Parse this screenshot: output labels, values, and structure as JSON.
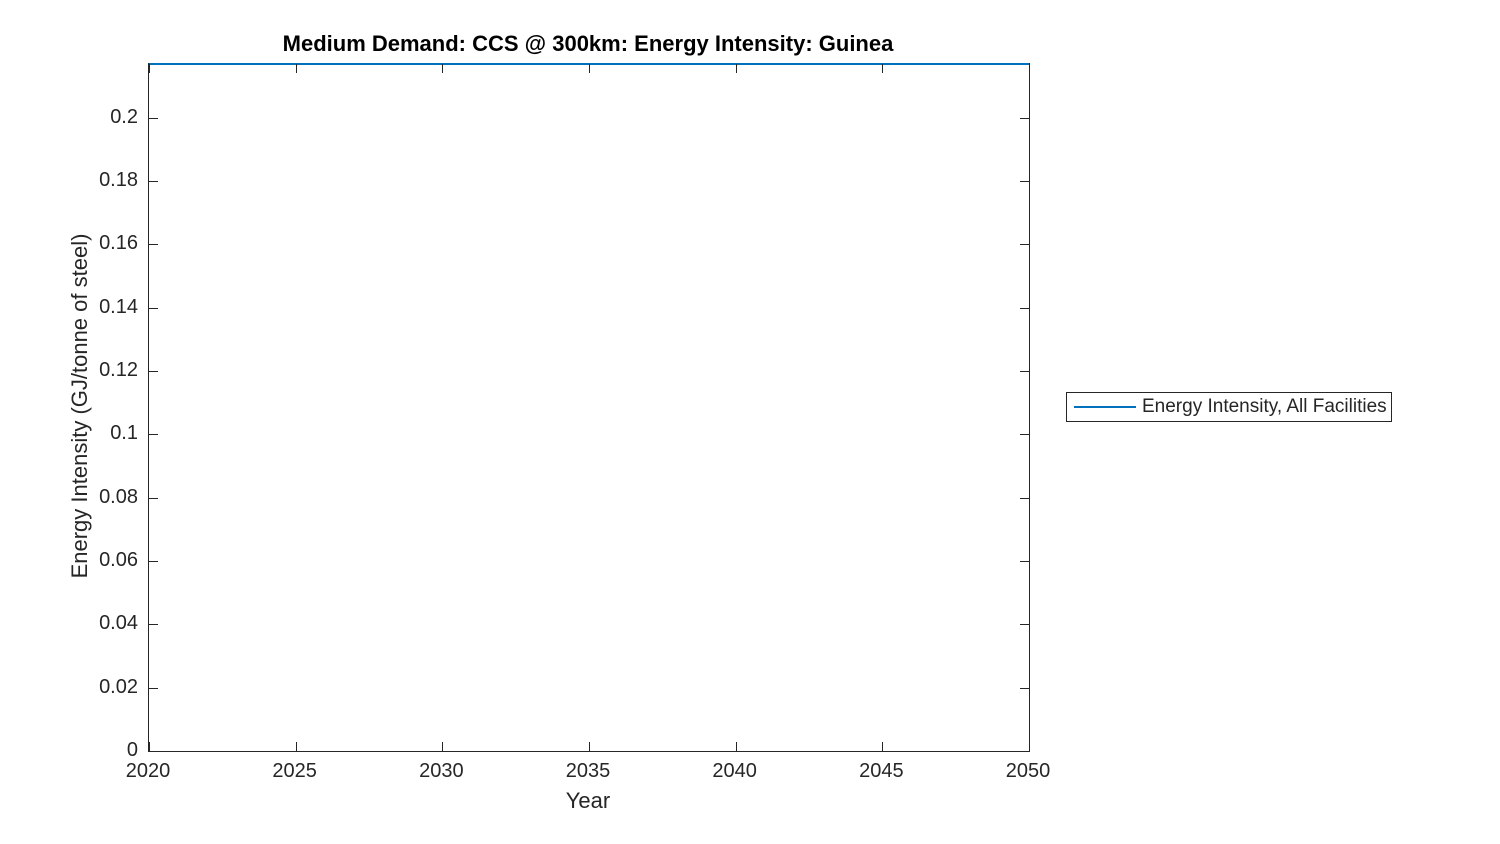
{
  "figure": {
    "background": "#ffffff"
  },
  "chart_data": {
    "type": "line",
    "title": "Medium Demand: CCS @ 300km: Energy Intensity: Guinea",
    "xlabel": "Year",
    "ylabel": "Energy Intensity (GJ/tonne of steel)",
    "xlim": [
      2020,
      2050
    ],
    "ylim": [
      0,
      0.217
    ],
    "xticks": [
      2020,
      2025,
      2030,
      2035,
      2040,
      2045,
      2050
    ],
    "yticks": [
      0,
      0.02,
      0.04,
      0.06,
      0.08,
      0.1,
      0.12,
      0.14,
      0.16,
      0.18,
      0.2
    ],
    "grid": false,
    "box": true,
    "tick_direction": "in",
    "legend": {
      "position": "outside-right",
      "entries": [
        {
          "label": "Energy Intensity, All Facilities",
          "color": "#0072BD",
          "style": "solid-line"
        }
      ]
    },
    "series": [
      {
        "name": "Energy Intensity, All Facilities",
        "color": "#0072BD",
        "x": [
          2020,
          2025,
          2030,
          2035,
          2040,
          2045,
          2050
        ],
        "y": [
          0.217,
          0.217,
          0.217,
          0.217,
          0.217,
          0.217,
          0.217
        ]
      }
    ],
    "colors": {
      "axis": "#262626",
      "tick_label": "#262626",
      "title": "#000000",
      "line": "#0072BD"
    }
  }
}
